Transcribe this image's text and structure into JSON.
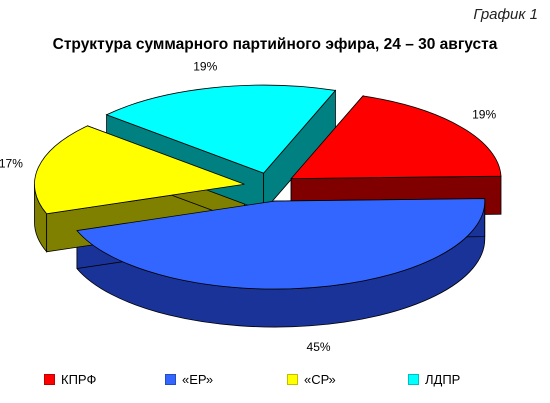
{
  "header": {
    "tag": "График 1"
  },
  "chart_data": {
    "type": "pie",
    "title": "Структура суммарного партийного эфира, 24 – 30 августа",
    "categories": [
      "КПРФ",
      "«ЕР»",
      "«СР»",
      "ЛДПР"
    ],
    "values": [
      19,
      45,
      17,
      19
    ],
    "labels": [
      "19%",
      "45%",
      "17%",
      "19%"
    ],
    "colors": [
      "#FF0000",
      "#3366FF",
      "#FFFF00",
      "#00FFFF"
    ],
    "side_colors": [
      "#800000",
      "#1A3399",
      "#808000",
      "#008080"
    ],
    "style": "3d-exploded",
    "legend_position": "bottom"
  }
}
